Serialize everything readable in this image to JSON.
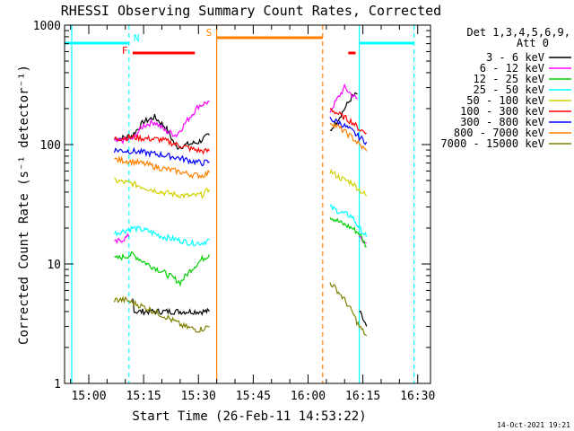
{
  "chart_data": {
    "type": "line",
    "title": "RHESSI Observing Summary Count Rates, Corrected",
    "xlabel": "Start Time (26-Feb-11 14:53:22)",
    "ylabel": "Corrected Count Rate (s⁻¹ detector⁻¹)",
    "y_scale": "log",
    "ylim": [
      1,
      1000
    ],
    "x_tick_labels": [
      "15:00",
      "15:15",
      "15:30",
      "15:45",
      "16:00",
      "16:15",
      "16:30"
    ],
    "y_tick_labels": [
      "1",
      "10",
      "100",
      "1000"
    ],
    "legend_header": [
      "Det 1,3,4,5,6,9,",
      "Att 0"
    ],
    "legend_placement": "right",
    "grid": false,
    "timestamp": "14-Oct-2021 19:21",
    "flag_labels": {
      "night": "N",
      "saa": "S",
      "flare": "F"
    },
    "series": [
      {
        "name": "3 - 6 keV",
        "color": "#000000",
        "segments": [
          {
            "x": [
              "15:07",
              "15:10",
              "15:12",
              "15:15",
              "15:18",
              "15:21",
              "15:24",
              "15:27",
              "15:30",
              "15:33"
            ],
            "y": [
              110,
              115,
              120,
              155,
              170,
              140,
              95,
              100,
              105,
              120
            ]
          },
          {
            "x": [
              "15:12",
              "15:12.5",
              "15:16",
              "15:20",
              "15:24",
              "15:28",
              "15:32",
              "15:33"
            ],
            "y": [
              5,
              4,
              4,
              4,
              4,
              4,
              4,
              4
            ]
          },
          {
            "x": [
              "16:06",
              "16:08",
              "16:10",
              "16:12",
              "16:13.5"
            ],
            "y": [
              130,
              160,
              200,
              250,
              265
            ]
          },
          {
            "x": [
              "16:14",
              "16:16"
            ],
            "y": [
              4,
              3
            ]
          }
        ]
      },
      {
        "name": "6 - 12 keV",
        "color": "#ff00ff",
        "segments": [
          {
            "x": [
              "15:07",
              "15:12",
              "15:15",
              "15:18",
              "15:21",
              "15:24",
              "15:27",
              "15:30",
              "15:33"
            ],
            "y": [
              105,
              112,
              145,
              155,
              130,
              120,
              160,
              210,
              230
            ]
          },
          {
            "x": [
              "15:07",
              "15:11"
            ],
            "y": [
              15,
              17
            ]
          },
          {
            "x": [
              "16:06",
              "16:08",
              "16:10",
              "16:12",
              "16:13.5"
            ],
            "y": [
              190,
              240,
              300,
              260,
              240
            ]
          },
          {
            "x": [
              "16:14",
              "16:16"
            ],
            "y": [
              17,
              15
            ]
          }
        ]
      },
      {
        "name": "12 - 25 keV",
        "color": "#00d000",
        "segments": [
          {
            "x": [
              "15:07",
              "15:12",
              "15:16",
              "15:19",
              "15:22",
              "15:25",
              "15:28",
              "15:31",
              "15:33"
            ],
            "y": [
              11,
              12,
              10,
              9,
              8,
              7,
              9,
              11,
              12
            ]
          },
          {
            "x": [
              "16:06",
              "16:09",
              "16:12",
              "16:14",
              "16:16"
            ],
            "y": [
              25,
              22,
              20,
              18,
              14
            ]
          }
        ]
      },
      {
        "name": "25 - 50 keV",
        "color": "#00ffff",
        "segments": [
          {
            "x": [
              "15:07",
              "15:12",
              "15:16",
              "15:20",
              "15:24",
              "15:28",
              "15:31",
              "15:33"
            ],
            "y": [
              18,
              20,
              19,
              17,
              16,
              15,
              15,
              16
            ]
          },
          {
            "x": [
              "16:06",
              "16:09",
              "16:12",
              "16:14",
              "16:16"
            ],
            "y": [
              30,
              27,
              25,
              20,
              17
            ]
          }
        ]
      },
      {
        "name": "50 - 100 keV",
        "color": "#d0d000",
        "segments": [
          {
            "x": [
              "15:07",
              "15:12",
              "15:16",
              "15:20",
              "15:24",
              "15:28",
              "15:31",
              "15:33"
            ],
            "y": [
              50,
              47,
              43,
              40,
              38,
              37,
              38,
              42
            ]
          },
          {
            "x": [
              "16:06",
              "16:09",
              "16:12",
              "16:14",
              "16:16"
            ],
            "y": [
              60,
              52,
              48,
              42,
              37
            ]
          }
        ]
      },
      {
        "name": "100 - 300 keV",
        "color": "#ff0000",
        "segments": [
          {
            "x": [
              "15:07",
              "15:12",
              "15:16",
              "15:20",
              "15:24",
              "15:28",
              "15:31",
              "15:33"
            ],
            "y": [
              112,
              115,
              112,
              110,
              100,
              92,
              88,
              88
            ]
          },
          {
            "x": [
              "16:06",
              "16:09",
              "16:12",
              "16:14",
              "16:16"
            ],
            "y": [
              200,
              175,
              155,
              135,
              125
            ]
          }
        ]
      },
      {
        "name": "300 - 800 keV",
        "color": "#0000ff",
        "segments": [
          {
            "x": [
              "15:07",
              "15:12",
              "15:16",
              "15:20",
              "15:24",
              "15:28",
              "15:31",
              "15:33"
            ],
            "y": [
              90,
              88,
              85,
              82,
              78,
              73,
              70,
              72
            ]
          },
          {
            "x": [
              "16:06",
              "16:09",
              "16:12",
              "16:14",
              "16:16"
            ],
            "y": [
              165,
              150,
              130,
              115,
              105
            ]
          }
        ]
      },
      {
        "name": "800 - 7000 keV",
        "color": "#ff8000",
        "segments": [
          {
            "x": [
              "15:07",
              "15:12",
              "15:16",
              "15:20",
              "15:24",
              "15:28",
              "15:31",
              "15:33"
            ],
            "y": [
              75,
              72,
              68,
              63,
              60,
              56,
              55,
              58
            ]
          },
          {
            "x": [
              "16:06",
              "16:09",
              "16:12",
              "16:14",
              "16:16"
            ],
            "y": [
              155,
              135,
              115,
              100,
              88
            ]
          }
        ]
      },
      {
        "name": "7000 - 15000 keV",
        "color": "#808000",
        "segments": [
          {
            "x": [
              "15:07",
              "15:10",
              "15:14",
              "15:18",
              "15:22",
              "15:26",
              "15:30",
              "15:33"
            ],
            "y": [
              5,
              5,
              4.5,
              4,
              3.5,
              3,
              2.8,
              3
            ]
          },
          {
            "x": [
              "16:06",
              "16:08",
              "16:10",
              "16:12",
              "16:14",
              "16:16"
            ],
            "y": [
              7,
              6,
              5,
              4,
              3,
              2.5
            ]
          }
        ]
      }
    ],
    "flags": {
      "night": [
        {
          "start": "14:50",
          "end": "15:11"
        },
        {
          "start": "16:14",
          "end": "16:29"
        }
      ],
      "saa": [
        {
          "start": "15:35",
          "end": "16:04"
        }
      ],
      "flare": [
        {
          "start": "15:12",
          "end": "15:29"
        },
        {
          "start": "16:11",
          "end": "16:13"
        }
      ]
    },
    "vlines": [
      {
        "x": "14:50",
        "style": "solid",
        "color": "#00ffff"
      },
      {
        "x": "15:11",
        "style": "dashed",
        "color": "#00ffff"
      },
      {
        "x": "15:35",
        "style": "solid",
        "color": "#ff8000"
      },
      {
        "x": "16:04",
        "style": "dashed",
        "color": "#ff8000"
      },
      {
        "x": "16:14",
        "style": "solid",
        "color": "#00ffff"
      },
      {
        "x": "16:29",
        "style": "dashed",
        "color": "#00ffff"
      }
    ]
  }
}
